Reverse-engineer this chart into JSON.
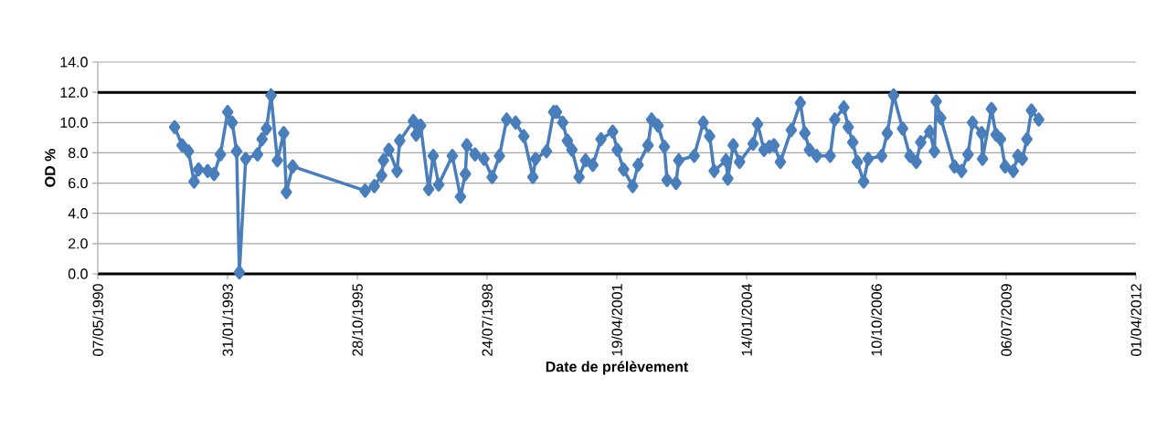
{
  "chart_data": {
    "type": "line",
    "xlabel": "Date de prélèvement",
    "ylabel": "OD %",
    "color": "#4a7ebb",
    "marker": "diamond",
    "line_style": "solid",
    "grid": "y",
    "xlim": [
      "1990-05-07",
      "2012-04-01"
    ],
    "xticks": [
      {
        "value": "1990-05-07",
        "label": "07/05/1990"
      },
      {
        "value": "1993-01-31",
        "label": "31/01/1993"
      },
      {
        "value": "1995-10-28",
        "label": "28/10/1995"
      },
      {
        "value": "1998-07-24",
        "label": "24/07/1998"
      },
      {
        "value": "2001-04-19",
        "label": "19/04/2001"
      },
      {
        "value": "2004-01-14",
        "label": "14/01/2004"
      },
      {
        "value": "2006-10-10",
        "label": "10/10/2006"
      },
      {
        "value": "2009-07-06",
        "label": "06/07/2009"
      },
      {
        "value": "2012-04-01",
        "label": "01/04/2012"
      }
    ],
    "ylim": [
      0,
      14
    ],
    "yticks": [
      {
        "value": 0,
        "label": "0.0"
      },
      {
        "value": 2,
        "label": "2.0"
      },
      {
        "value": 4,
        "label": "4.0"
      },
      {
        "value": 6,
        "label": "6.0"
      },
      {
        "value": 8,
        "label": "8.0"
      },
      {
        "value": 10,
        "label": "10.0"
      },
      {
        "value": 12,
        "label": "12.0"
      },
      {
        "value": 14,
        "label": "14.0"
      }
    ],
    "ref_lines": [
      {
        "axis": "y",
        "value": 12,
        "color": "#000000"
      }
    ],
    "x": [
      "1991-12-20",
      "1992-02-16",
      "1992-04-05",
      "1992-05-18",
      "1992-06-22",
      "1992-08-31",
      "1992-10-19",
      "1992-12-07",
      "1993-02-01",
      "1993-03-08",
      "1993-04-11",
      "1993-05-02",
      "1993-06-20",
      "1993-09-19",
      "1993-10-24",
      "1993-11-27",
      "1994-01-01",
      "1994-02-19",
      "1994-04-09",
      "1994-04-29",
      "1994-06-17",
      "1995-12-27",
      "1996-03-07",
      "1996-05-02",
      "1996-05-16",
      "1996-06-27",
      "1996-08-29",
      "1996-09-19",
      "1997-01-02",
      "1997-01-23",
      "1997-02-27",
      "1997-04-30",
      "1997-06-04",
      "1997-07-16",
      "1997-10-29",
      "1997-12-31",
      "1998-02-07",
      "1998-02-18",
      "1998-04-22",
      "1998-06-30",
      "1998-09-01",
      "1998-10-27",
      "1998-12-22",
      "1999-03-01",
      "1999-05-03",
      "1999-07-12",
      "1999-08-02",
      "1999-10-25",
      "1999-12-19",
      "2000-01-10",
      "2000-02-27",
      "2000-04-03",
      "2000-05-08",
      "2000-07-02",
      "2000-08-21",
      "2000-10-16",
      "2000-12-18",
      "2001-03-18",
      "2001-04-22",
      "2001-06-10",
      "2001-08-19",
      "2001-09-30",
      "2001-12-15",
      "2002-01-12",
      "2002-03-02",
      "2002-04-20",
      "2002-05-11",
      "2002-07-19",
      "2002-08-09",
      "2002-12-06",
      "2003-02-14",
      "2003-04-04",
      "2003-05-09",
      "2003-08-08",
      "2003-08-22",
      "2003-10-03",
      "2003-11-21",
      "2004-03-04",
      "2004-04-08",
      "2004-05-27",
      "2004-07-08",
      "2004-08-12",
      "2004-09-30",
      "2004-12-23",
      "2005-03-03",
      "2005-04-07",
      "2005-05-12",
      "2005-07-07",
      "2005-10-19",
      "2005-11-23",
      "2006-02-01",
      "2006-03-07",
      "2006-04-11",
      "2006-05-16",
      "2006-07-04",
      "2006-08-08",
      "2006-11-20",
      "2007-01-02",
      "2007-02-20",
      "2007-04-30",
      "2007-06-25",
      "2007-08-13",
      "2007-09-17",
      "2007-11-25",
      "2007-12-31",
      "2008-01-14",
      "2008-02-18",
      "2008-06-03",
      "2008-07-28",
      "2008-09-15",
      "2008-10-20",
      "2008-12-29",
      "2009-01-05",
      "2009-03-15",
      "2009-04-19",
      "2009-05-24",
      "2009-06-28",
      "2009-08-30",
      "2009-10-04",
      "2009-11-08",
      "2009-12-13",
      "2010-01-17",
      "2010-03-14"
    ],
    "values": [
      9.7,
      8.5,
      8.1,
      6.1,
      6.9,
      6.8,
      6.6,
      7.9,
      10.7,
      10.0,
      8.1,
      0.1,
      7.6,
      7.9,
      8.9,
      9.6,
      11.8,
      7.5,
      9.3,
      5.4,
      7.1,
      5.5,
      5.8,
      6.5,
      7.5,
      8.2,
      6.8,
      8.8,
      10.1,
      9.2,
      9.8,
      5.6,
      7.8,
      5.9,
      7.8,
      5.1,
      6.6,
      8.5,
      7.9,
      7.6,
      6.4,
      7.8,
      10.2,
      10.0,
      9.1,
      6.4,
      7.6,
      8.1,
      10.7,
      10.7,
      10.0,
      8.8,
      8.2,
      6.4,
      7.5,
      7.2,
      8.9,
      9.4,
      8.2,
      6.9,
      5.8,
      7.2,
      8.5,
      10.2,
      9.8,
      8.4,
      6.2,
      6.0,
      7.5,
      7.8,
      10.0,
      9.1,
      6.8,
      7.5,
      6.3,
      8.5,
      7.4,
      8.6,
      9.9,
      8.2,
      8.4,
      8.5,
      7.4,
      9.5,
      11.3,
      9.3,
      8.2,
      7.8,
      7.8,
      10.2,
      11.0,
      9.7,
      8.7,
      7.4,
      6.1,
      7.6,
      7.8,
      9.3,
      11.8,
      9.6,
      7.8,
      7.4,
      8.7,
      9.4,
      8.1,
      11.4,
      10.3,
      7.1,
      6.8,
      7.9,
      10.0,
      9.3,
      7.6,
      10.9,
      9.2,
      8.9,
      7.1,
      6.8,
      7.8,
      7.6,
      8.9,
      10.8,
      10.2
    ]
  }
}
